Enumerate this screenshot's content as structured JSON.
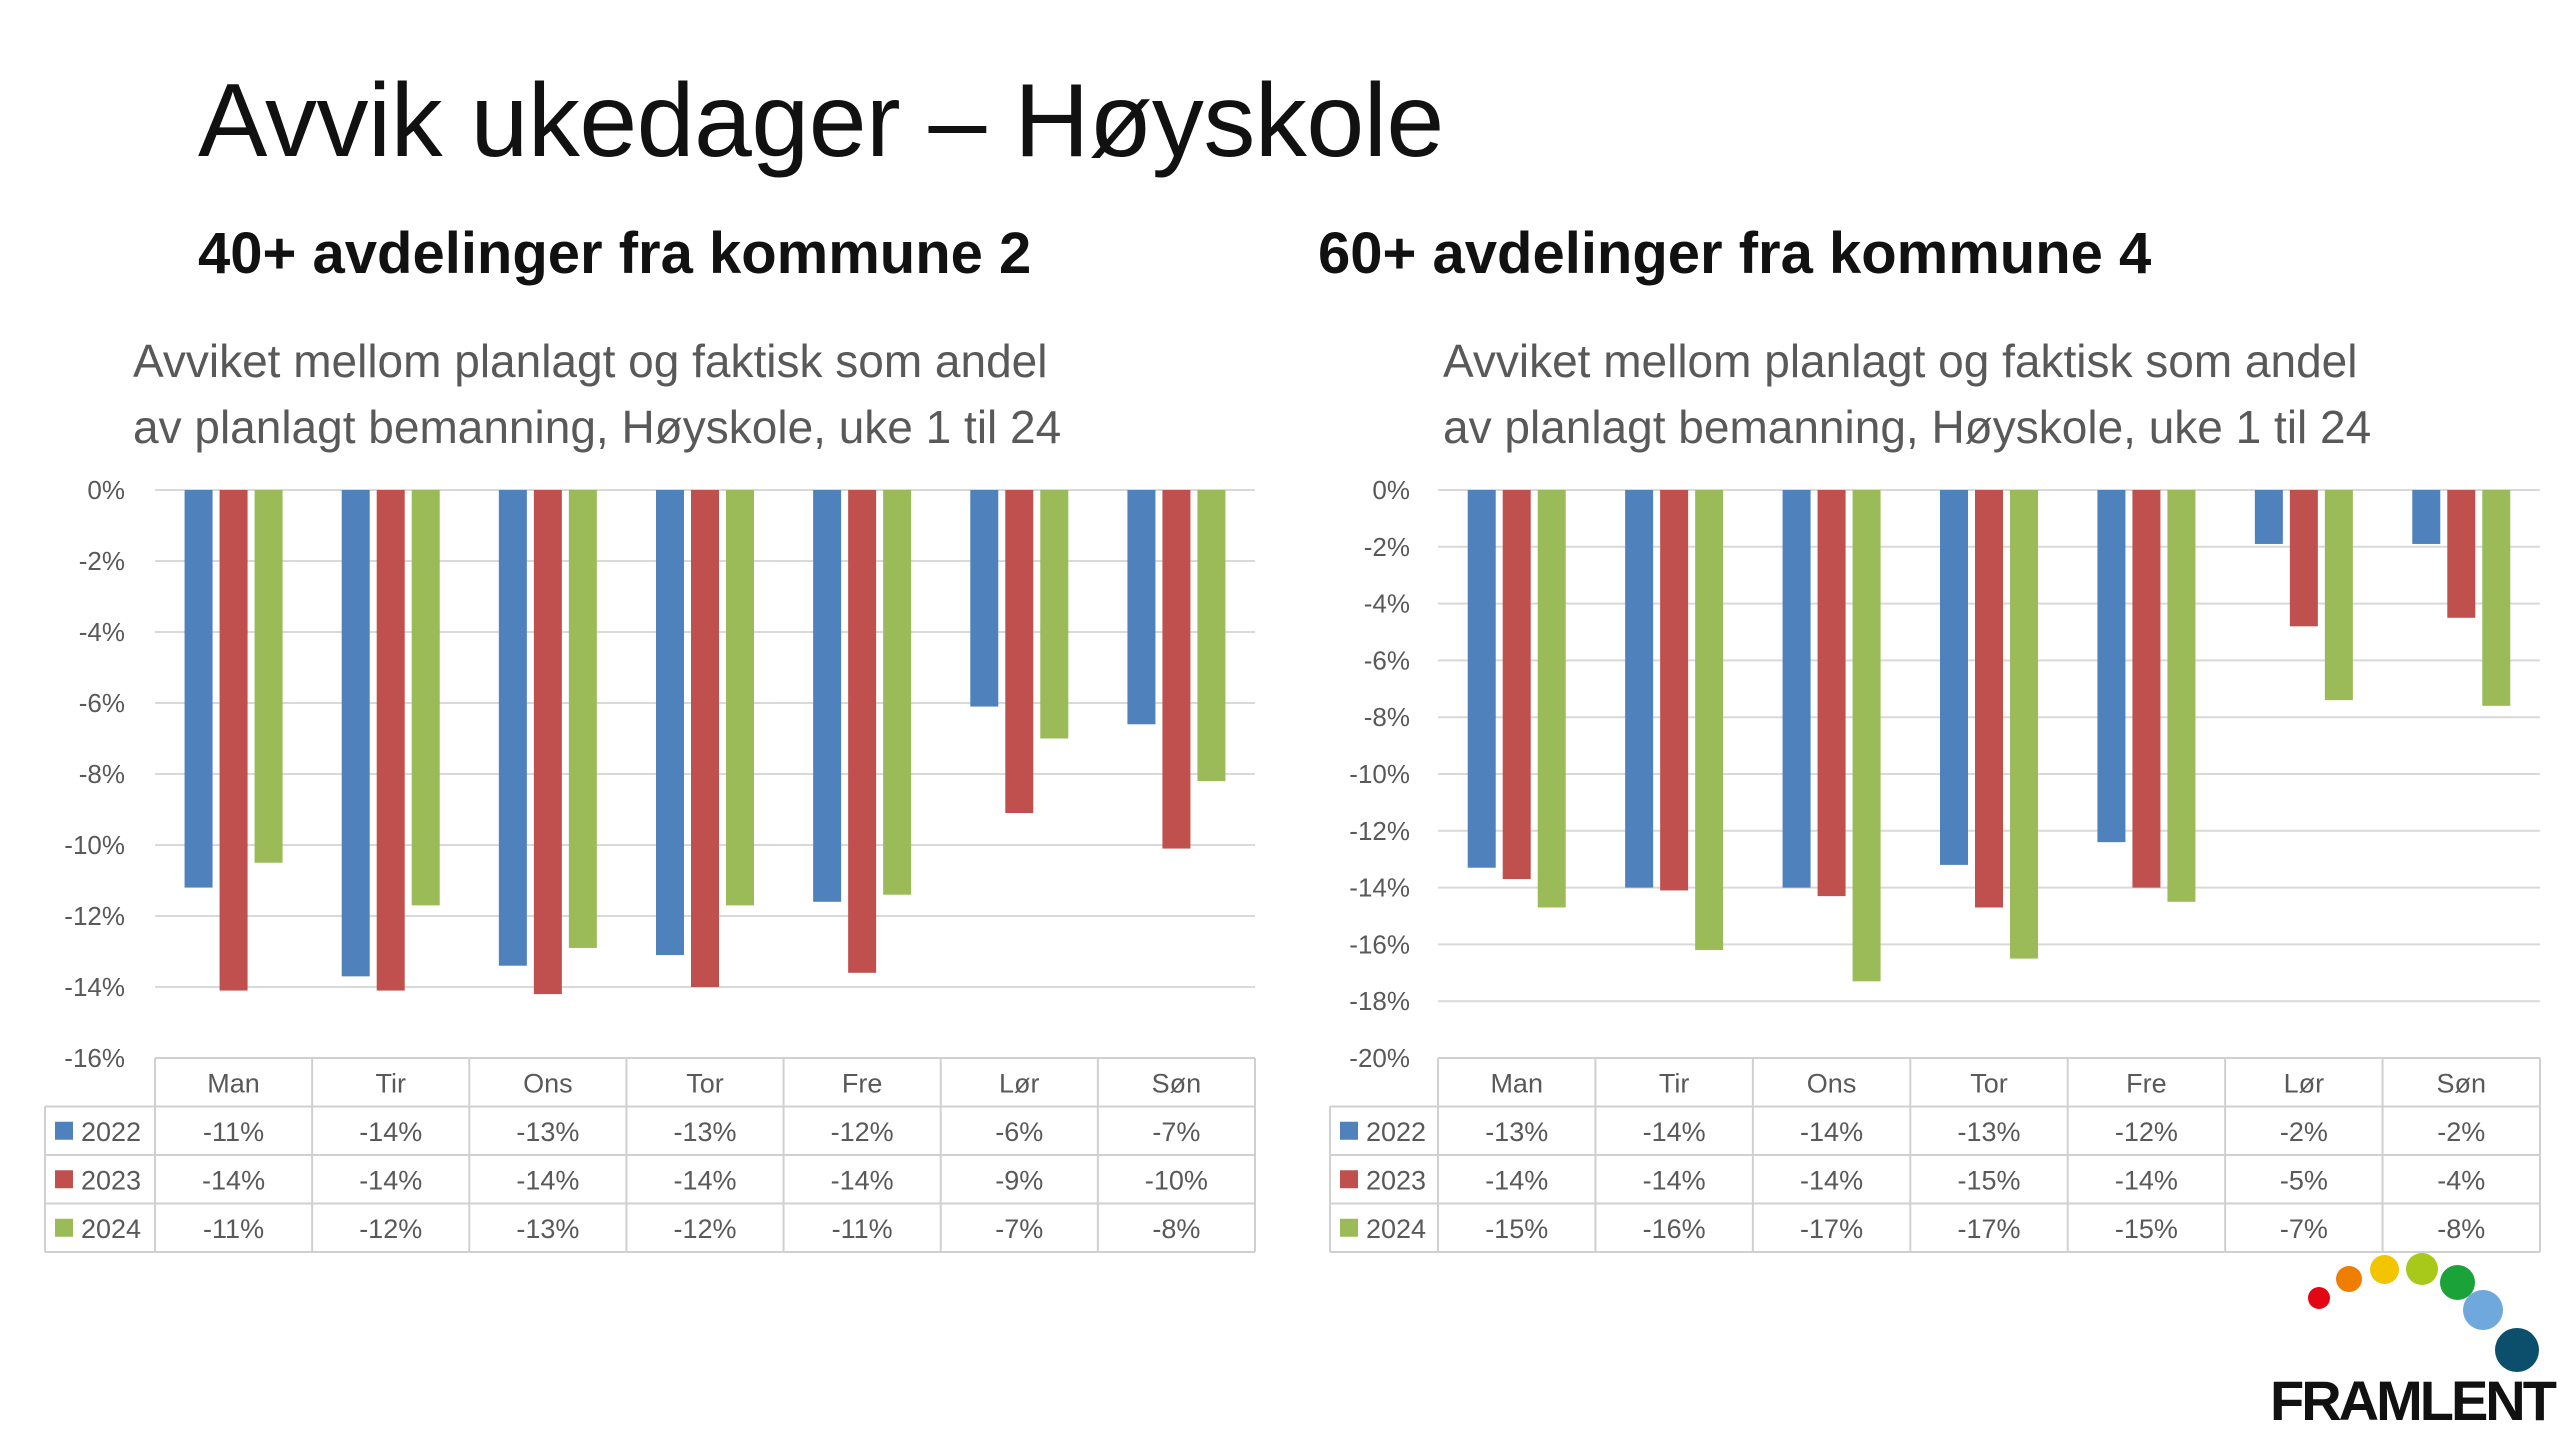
{
  "slide": {
    "title": "Avvik ukedager – Høyskole",
    "left_heading": "40+ avdelinger fra kommune 2",
    "right_heading": "60+ avdelinger fra kommune 4"
  },
  "logo": {
    "text": "FRAMLENT"
  },
  "chart_data": [
    {
      "type": "bar",
      "title_lines": [
        "Avviket mellom planlagt og faktisk som andel",
        "av planlagt bemanning, Høyskole, uke 1 til 24"
      ],
      "categories": [
        "Man",
        "Tir",
        "Ons",
        "Tor",
        "Fre",
        "Lør",
        "Søn"
      ],
      "ylim": [
        -16,
        0
      ],
      "yticks": [
        "0%",
        "-2%",
        "-4%",
        "-6%",
        "-8%",
        "-10%",
        "-12%",
        "-14%",
        "-16%"
      ],
      "grid": true,
      "legend": "data-table",
      "series": [
        {
          "name": "2022",
          "color": "#4f81bd",
          "values": [
            -11.2,
            -13.7,
            -13.4,
            -13.1,
            -11.6,
            -6.1,
            -6.6
          ],
          "labels": [
            "-11%",
            "-14%",
            "-13%",
            "-13%",
            "-12%",
            "-6%",
            "-7%"
          ]
        },
        {
          "name": "2023",
          "color": "#c0504d",
          "values": [
            -14.1,
            -14.1,
            -14.2,
            -14.0,
            -13.6,
            -9.1,
            -10.1
          ],
          "labels": [
            "-14%",
            "-14%",
            "-14%",
            "-14%",
            "-14%",
            "-9%",
            "-10%"
          ]
        },
        {
          "name": "2024",
          "color": "#9bbb59",
          "values": [
            -10.5,
            -11.7,
            -12.9,
            -11.7,
            -11.4,
            -7.0,
            -8.2
          ],
          "labels": [
            "-11%",
            "-12%",
            "-13%",
            "-12%",
            "-11%",
            "-7%",
            "-8%"
          ]
        }
      ]
    },
    {
      "type": "bar",
      "title_lines": [
        "Avviket mellom planlagt og faktisk som andel",
        "av planlagt bemanning, Høyskole, uke 1 til 24"
      ],
      "categories": [
        "Man",
        "Tir",
        "Ons",
        "Tor",
        "Fre",
        "Lør",
        "Søn"
      ],
      "ylim": [
        -20,
        0
      ],
      "yticks": [
        "0%",
        "-2%",
        "-4%",
        "-6%",
        "-8%",
        "-10%",
        "-12%",
        "-14%",
        "-16%",
        "-18%",
        "-20%"
      ],
      "grid": true,
      "legend": "data-table",
      "series": [
        {
          "name": "2022",
          "color": "#4f81bd",
          "values": [
            -13.3,
            -14.0,
            -14.0,
            -13.2,
            -12.4,
            -1.9,
            -1.9
          ],
          "labels": [
            "-13%",
            "-14%",
            "-14%",
            "-13%",
            "-12%",
            "-2%",
            "-2%"
          ]
        },
        {
          "name": "2023",
          "color": "#c0504d",
          "values": [
            -13.7,
            -14.1,
            -14.3,
            -14.7,
            -14.0,
            -4.8,
            -4.5
          ],
          "labels": [
            "-14%",
            "-14%",
            "-14%",
            "-15%",
            "-14%",
            "-5%",
            "-4%"
          ]
        },
        {
          "name": "2024",
          "color": "#9bbb59",
          "values": [
            -14.7,
            -16.2,
            -17.3,
            -16.5,
            -14.5,
            -7.4,
            -7.6
          ],
          "labels": [
            "-15%",
            "-16%",
            "-17%",
            "-17%",
            "-15%",
            "-7%",
            "-8%"
          ]
        }
      ]
    }
  ]
}
